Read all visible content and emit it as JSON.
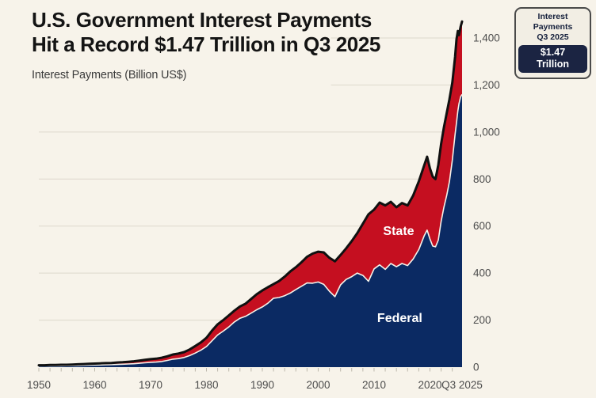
{
  "header": {
    "title_line1": "U.S. Government Interest Payments",
    "title_line2": "Hit a Record $1.47 Trillion in Q3 2025",
    "subtitle": "Interest Payments (Billion US$)"
  },
  "badge": {
    "line1": "Interest Payments",
    "line2": "Q3 2025",
    "value": "$1.47 Trillion"
  },
  "colors": {
    "background": "#f7f3ea",
    "federal_area": "#0b2a63",
    "state_area": "#c50f20",
    "total_line": "#101010",
    "separator_line": "#f6f2e9",
    "grid_line": "#ddd8cc",
    "tick_mark": "#bdb8ac",
    "axis_text": "#4c4c4c",
    "inner_label_text": "#ffffff"
  },
  "chart_data": {
    "type": "area",
    "stacked": true,
    "title": "U.S. Government Interest Payments Hit a Record $1.47 Trillion in Q3 2025",
    "ylabel": "Interest Payments (Billion US$)",
    "xlim": [
      1950,
      2025.75
    ],
    "ylim": [
      0,
      1470
    ],
    "grid": "horizontal",
    "legend_position": "labels-inside-areas",
    "x": [
      1950,
      1951,
      1952,
      1953,
      1954,
      1955,
      1956,
      1957,
      1958,
      1959,
      1960,
      1961,
      1962,
      1963,
      1964,
      1965,
      1966,
      1967,
      1968,
      1969,
      1970,
      1971,
      1972,
      1973,
      1974,
      1975,
      1976,
      1977,
      1978,
      1979,
      1980,
      1981,
      1982,
      1983,
      1984,
      1985,
      1986,
      1987,
      1988,
      1989,
      1990,
      1991,
      1992,
      1993,
      1994,
      1995,
      1996,
      1997,
      1998,
      1999,
      2000,
      2001,
      2002,
      2003,
      2004,
      2005,
      2006,
      2007,
      2008,
      2009,
      2010,
      2011,
      2012,
      2013,
      2014,
      2015,
      2016,
      2017,
      2018,
      2019,
      2019.5,
      2020,
      2020.5,
      2021,
      2021.5,
      2022,
      2022.5,
      2023,
      2023.5,
      2024,
      2024.5,
      2024.75,
      2025,
      2025.2,
      2025.5,
      2025.75
    ],
    "series": [
      {
        "name": "Federal",
        "values": [
          4.8,
          4.9,
          5.2,
          5.4,
          5.7,
          6,
          6.4,
          7,
          7.6,
          8.3,
          9,
          9.3,
          10,
          10.7,
          11.6,
          12.3,
          13.5,
          14.6,
          16.5,
          18.6,
          20.5,
          21.5,
          24,
          28.5,
          34,
          36.5,
          41,
          49,
          60,
          72,
          88,
          112,
          137,
          153,
          171,
          192,
          208,
          216,
          230,
          244,
          256,
          272,
          293,
          296,
          304,
          315,
          330,
          344,
          358,
          357,
          362,
          352,
          323,
          300,
          350,
          373,
          385,
          400,
          390,
          365,
          418,
          435,
          416,
          441,
          427,
          441,
          432,
          460,
          500,
          560,
          583,
          545,
          515,
          512,
          540,
          620,
          680,
          730,
          790,
          880,
          990,
          1040,
          1090,
          1120,
          1150,
          1160
        ]
      },
      {
        "name": "State",
        "values": [
          3.2,
          3.1,
          3.8,
          3.6,
          4.3,
          4,
          4.6,
          5,
          5.4,
          5.7,
          6,
          6.7,
          7,
          7.3,
          8.4,
          8.7,
          9.5,
          10.4,
          11.5,
          12.4,
          13.5,
          14.5,
          16,
          17.5,
          20,
          21.5,
          23,
          26,
          30,
          33,
          37,
          43,
          45,
          47,
          49,
          48,
          50,
          54,
          60,
          66,
          70,
          68,
          60,
          70,
          81,
          92,
          95,
          102,
          111,
          126,
          129,
          136,
          142,
          150,
          127,
          132,
          151,
          170,
          220,
          285,
          252,
          265,
          272,
          262,
          253,
          257,
          256,
          270,
          290,
          300,
          312,
          300,
          295,
          288,
          320,
          330,
          340,
          350,
          350,
          330,
          330,
          355,
          340,
          292,
          298,
          310
        ]
      }
    ],
    "x_tick_labels": [
      {
        "label": "1950",
        "year": 1950
      },
      {
        "label": "1960",
        "year": 1960
      },
      {
        "label": "1970",
        "year": 1970
      },
      {
        "label": "1980",
        "year": 1980
      },
      {
        "label": "1990",
        "year": 1990
      },
      {
        "label": "2000",
        "year": 2000
      },
      {
        "label": "2010",
        "year": 2010
      },
      {
        "label": "2020",
        "year": 2020
      },
      {
        "label": "Q3 2025",
        "year": 2025.75
      }
    ],
    "minor_tick_step_years": 2,
    "y_ticks": [
      {
        "value": 0,
        "label": "0"
      },
      {
        "value": 200,
        "label": "200"
      },
      {
        "value": 400,
        "label": "400"
      },
      {
        "value": 600,
        "label": "600"
      },
      {
        "value": 800,
        "label": "800"
      },
      {
        "value": 1000,
        "label": "1,000"
      },
      {
        "value": 1200,
        "label": "1,200"
      },
      {
        "value": 1400,
        "label": "1,400"
      }
    ],
    "short_grid_from_value": 1200,
    "short_grid_start_year": 2002.3,
    "inner_labels": [
      {
        "text": "State",
        "year": 2014.4,
        "value": 562
      },
      {
        "text": "Federal",
        "year": 2014.6,
        "value": 192
      }
    ]
  }
}
